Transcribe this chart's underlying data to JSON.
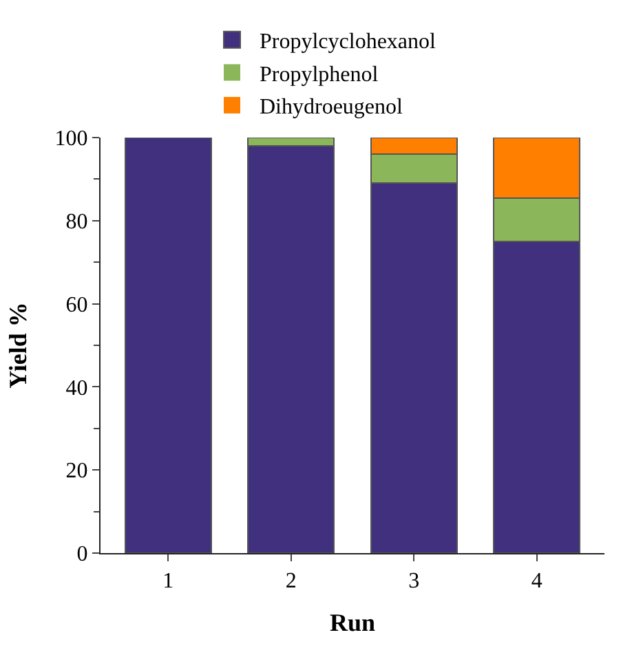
{
  "chart_data": {
    "type": "bar",
    "stacked": true,
    "xlabel": "Run",
    "ylabel": "Yield %",
    "categories": [
      "1",
      "2",
      "3",
      "4"
    ],
    "series": [
      {
        "name": "Propylcyclohexanol",
        "color": "#41307d",
        "values": [
          100,
          98,
          89,
          75
        ]
      },
      {
        "name": "Propylphenol",
        "color": "#8cb65a",
        "values": [
          0,
          2,
          7,
          10.5
        ]
      },
      {
        "name": "Dihydroeugenol",
        "color": "#ff8000",
        "values": [
          0,
          0,
          4,
          14.5
        ]
      }
    ],
    "ylim": [
      0,
      100
    ],
    "yticks": [
      0,
      20,
      40,
      60,
      80,
      100
    ],
    "grid": false,
    "legend": "top"
  }
}
